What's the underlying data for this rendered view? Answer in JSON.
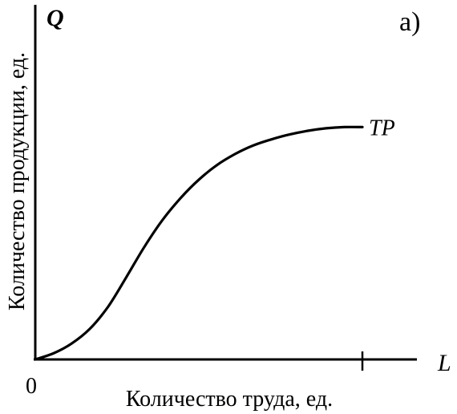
{
  "chart_data": {
    "type": "line",
    "panel_label": "а)",
    "y_axis_symbol": "Q",
    "x_axis_symbol": "L",
    "ylabel": "Количество продукции, ед.",
    "xlabel": "Количество труда, ед.",
    "origin_label": "0",
    "series": [
      {
        "name": "TP",
        "x": [
          0,
          0.5,
          1,
          1.5,
          2,
          2.5,
          3,
          3.5,
          4,
          4.5,
          5,
          5.5,
          6,
          6.5,
          7,
          7.5,
          8,
          8.5,
          9
        ],
        "y": [
          0,
          0.5,
          1.3,
          2.5,
          4.3,
          6.7,
          9.2,
          11.4,
          13.2,
          14.7,
          15.9,
          16.8,
          17.5,
          18.0,
          18.4,
          18.7,
          18.9,
          19.0,
          19.0
        ]
      }
    ],
    "x_tick_at": 9,
    "xlim": [
      0,
      10.5
    ],
    "ylim": [
      0,
      29
    ],
    "grid": false
  }
}
